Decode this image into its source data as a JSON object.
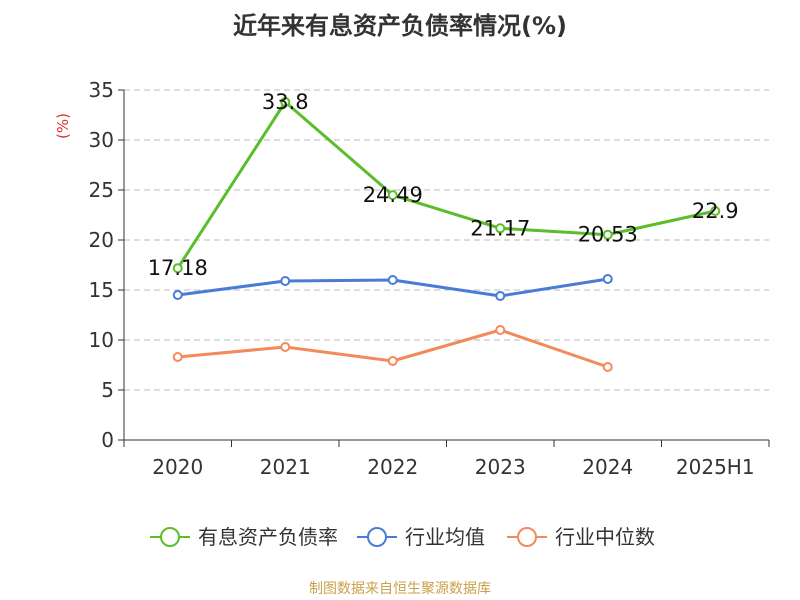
{
  "title": "近年来有息资产负债率情况(%)",
  "source": "制图数据来自恒生聚源数据库",
  "chart_data": {
    "type": "line",
    "title": "近年来有息资产负债率情况(%)",
    "ylabel": "(%)",
    "ylim": [
      0,
      35
    ],
    "yticks": [
      "0",
      "5",
      "10",
      "15",
      "20",
      "25",
      "30",
      "35"
    ],
    "categories": [
      "2020",
      "2021",
      "2022",
      "2023",
      "2024",
      "2025H1"
    ],
    "grid": true,
    "legend_position": "bottom",
    "series": [
      {
        "name": "有息资产负债率",
        "color": "#5cbd2a",
        "values": [
          17.18,
          33.8,
          24.49,
          21.17,
          20.53,
          22.9
        ],
        "labels": [
          "17.18",
          "33.8",
          "24.49",
          "21.17",
          "20.53",
          "22.9"
        ]
      },
      {
        "name": "行业均值",
        "color": "#4a7bd6",
        "values": [
          14.5,
          15.9,
          16.0,
          14.4,
          16.1,
          null
        ]
      },
      {
        "name": "行业中位数",
        "color": "#f28a5b",
        "values": [
          8.3,
          9.3,
          7.9,
          11.0,
          7.3,
          null
        ]
      }
    ]
  }
}
